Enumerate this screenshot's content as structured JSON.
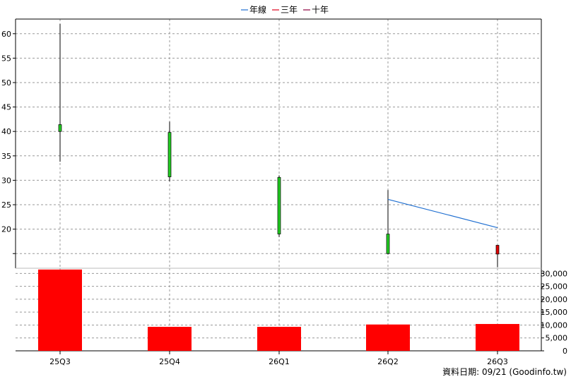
{
  "chart_data": {
    "type": "candlestick_with_volume",
    "legend": {
      "placement": "top-center",
      "items": [
        {
          "name": "年線",
          "color": "#1f6fd1"
        },
        {
          "name": "三年",
          "color": "#e0001b"
        },
        {
          "name": "十年",
          "color": "#8b0040"
        }
      ]
    },
    "categories": [
      "25Q3",
      "25Q4",
      "26Q1",
      "26Q2",
      "26Q3"
    ],
    "price": {
      "ylim": [
        12,
        63
      ],
      "yticks": [
        15,
        20,
        25,
        30,
        35,
        40,
        45,
        50,
        55,
        60
      ],
      "tick_labels": [
        "",
        "20",
        "25",
        "30",
        "35",
        "40",
        "45",
        "50",
        "55",
        "60"
      ],
      "candles": [
        {
          "open": 40.0,
          "high": 62.0,
          "low": 33.8,
          "close": 41.4,
          "color": "#22cc22"
        },
        {
          "open": 30.7,
          "high": 42.0,
          "low": 29.8,
          "close": 39.8,
          "color": "#22cc22"
        },
        {
          "open": 19.0,
          "high": 31.0,
          "low": 18.4,
          "close": 30.6,
          "color": "#22cc22"
        },
        {
          "open": 15.0,
          "high": 28.0,
          "low": 14.8,
          "close": 19.0,
          "color": "#22cc22"
        },
        {
          "open": 16.7,
          "high": 16.7,
          "low": 12.2,
          "close": 14.9,
          "color": "#e00000"
        }
      ],
      "series": [
        {
          "name": "年線",
          "color": "#1f6fd1",
          "points": [
            [
              3,
              26.1
            ],
            [
              4,
              20.3
            ]
          ]
        }
      ]
    },
    "volume": {
      "ylim": [
        0,
        32000
      ],
      "yticks": [
        0,
        5000,
        10000,
        15000,
        20000,
        25000,
        30000
      ],
      "tick_labels": [
        "0",
        "5,000",
        "10,000",
        "15,000",
        "20,000",
        "25,000",
        "30,000"
      ],
      "values": [
        31500,
        9300,
        9300,
        10200,
        10400
      ],
      "color": "#ff0000"
    },
    "footer": "資料日期: 09/21  (Goodinfo.tw)"
  }
}
